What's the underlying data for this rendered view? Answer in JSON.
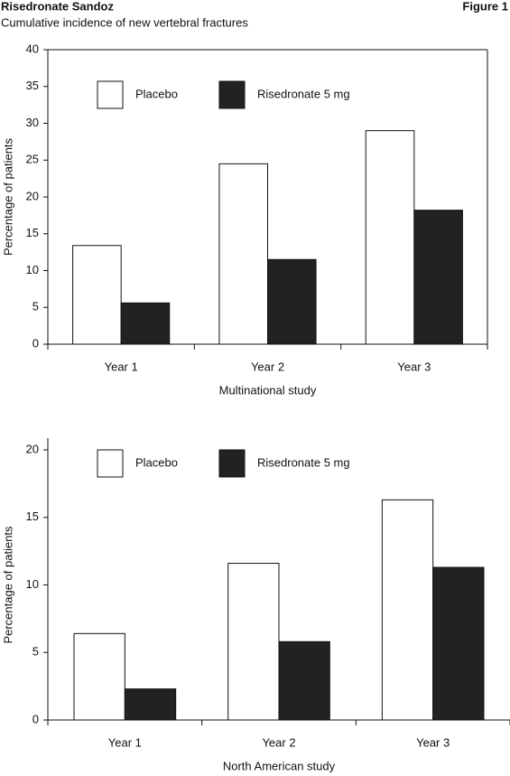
{
  "header": {
    "title": "Risedronate Sandoz",
    "subtitle": "Cumulative incidence of new vertebral fractures",
    "figure": "Figure 1"
  },
  "chart_data": [
    {
      "type": "bar",
      "frame": true,
      "legend": "top-left",
      "categories": [
        "Year 1",
        "Year 2",
        "Year 3"
      ],
      "x_label": "Multinational study",
      "y_label": "Percentage of patients",
      "series": [
        {
          "name": "Placebo",
          "color": "#ffffff",
          "values": [
            13.4,
            24.5,
            29.0
          ]
        },
        {
          "name": "Risedronate 5 mg",
          "color": "#222222",
          "values": [
            5.6,
            11.5,
            18.2
          ]
        }
      ],
      "ylim": [
        0,
        40
      ],
      "yticks": [
        0,
        5,
        10,
        15,
        20,
        25,
        30,
        35,
        40
      ]
    },
    {
      "type": "bar",
      "frame": false,
      "legend": "top-left",
      "categories": [
        "Year 1",
        "Year 2",
        "Year 3"
      ],
      "x_label": "North American study",
      "y_label": "Percentage of patients",
      "series": [
        {
          "name": "Placebo",
          "color": "#ffffff",
          "values": [
            6.4,
            11.6,
            16.3
          ]
        },
        {
          "name": "Risedronate 5 mg",
          "color": "#222222",
          "values": [
            2.3,
            5.8,
            11.3
          ]
        }
      ],
      "ylim": [
        0,
        20
      ],
      "yticks": [
        0,
        5,
        10,
        15,
        20
      ]
    }
  ]
}
